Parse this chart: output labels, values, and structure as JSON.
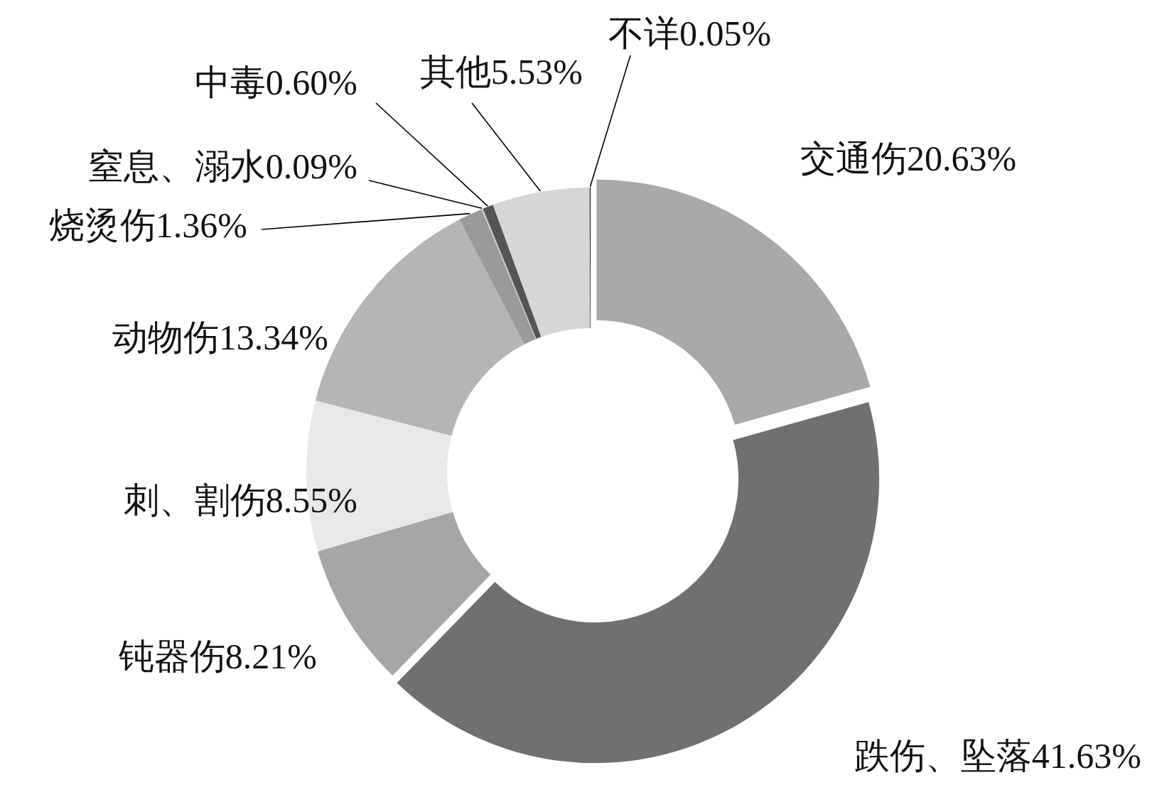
{
  "chart_data": {
    "type": "donut",
    "categories": [
      "交通伤",
      "跌伤、坠落",
      "钝器伤",
      "刺、割伤",
      "动物伤",
      "烧烫伤",
      "窒息、溺水",
      "中毒",
      "其他",
      "不详"
    ],
    "values": [
      20.63,
      41.63,
      8.21,
      8.55,
      13.34,
      1.36,
      0.09,
      0.6,
      5.53,
      0.05
    ],
    "value_labels": [
      "20.63%",
      "41.63%",
      "8.21%",
      "8.55%",
      "13.34%",
      "1.36%",
      "0.09%",
      "0.60%",
      "5.53%",
      "0.05%"
    ],
    "colors": [
      "#a9a9a9",
      "#707070",
      "#a6a6a6",
      "#e8e8e8",
      "#b5b5b5",
      "#999999",
      "#c4c4c4",
      "#555555",
      "#d6d6d6",
      "#1a1a1a"
    ]
  }
}
